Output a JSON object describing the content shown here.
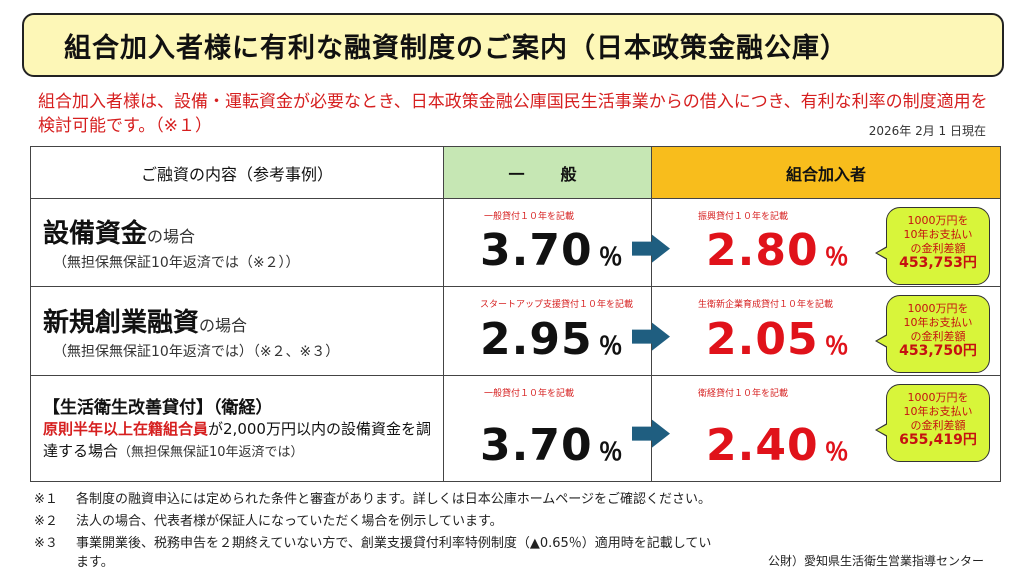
{
  "title": "組合加入者様に有利な融資制度のご案内（日本政策金融公庫）",
  "intro": "組合加入者様は、設備・運転資金が必要なとき、日本政策金融公庫国民生活事業からの借入につき、有利な利率の制度適用を検討可能です。（※１）",
  "as_of": "2026年 2月 1 日現在",
  "table": {
    "headers": {
      "content": "ご融資の内容（参考事例）",
      "general": "一　般",
      "member": "組合加入者"
    },
    "percent": "％",
    "rows": [
      {
        "title": "設備資金",
        "title_suffix": "の場合",
        "sub": "（無担保無保証10年返済では（※２））",
        "general_note": "一般貸付１０年を記載",
        "general_rate": "3.70",
        "member_note": "振興貸付１０年を記載",
        "member_rate": "2.80",
        "bubble_l1": "1000万円を",
        "bubble_l2": "10年お支払い",
        "bubble_l3": "の金利差額",
        "bubble_amount": "453,753円"
      },
      {
        "title": "新規創業融資",
        "title_suffix": "の場合",
        "sub": "（無担保無保証10年返済では）（※２、※３）",
        "general_note": "スタートアップ支援貸付１０年を記載",
        "general_rate": "2.95",
        "member_note": "生衛新企業育成貸付１０年を記載",
        "member_rate": "2.05",
        "bubble_l1": "1000万円を",
        "bubble_l2": "10年お支払い",
        "bubble_l3": "の金利差額",
        "bubble_amount": "453,750円"
      },
      {
        "title": "【生活衛生改善貸付】（衛経）",
        "body_red": "原則半年以上在籍組合員",
        "body_text": "が2,000万円以内の設備資金を調達する場合",
        "body_note": "（無担保無保証10年返済では）",
        "general_note": "一般貸付１０年を記載",
        "general_rate": "3.70",
        "member_note": "衛経貸付１０年を記載",
        "member_rate": "2.40",
        "bubble_l1": "1000万円を",
        "bubble_l2": "10年お支払い",
        "bubble_l3": "の金利差額",
        "bubble_amount": "655,419円"
      }
    ]
  },
  "footnotes": [
    {
      "mark": "※１",
      "text": "各制度の融資申込には定められた条件と審査があります。詳しくは日本公庫ホームページをご確認ください。"
    },
    {
      "mark": "※２",
      "text": "法人の場合、代表者様が保証人になっていただく場合を例示しています。"
    },
    {
      "mark": "※３",
      "text": "事業開業後、税務申告を２期終えていない方で、創業支援貸付利率特例制度（▲0.65％）適用時を記載しています。"
    }
  ],
  "source": "公財）愛知県生活衛生営業指導センター",
  "colors": {
    "title_bg": "#fdf7b7",
    "general_header": "#c6e7b4",
    "member_header": "#f8bd1c",
    "accent_red": "#e0121a",
    "bubble": "#d8f53a",
    "arrow": "#1f5e80"
  },
  "icons": {
    "arrow": "right-arrow-icon"
  }
}
